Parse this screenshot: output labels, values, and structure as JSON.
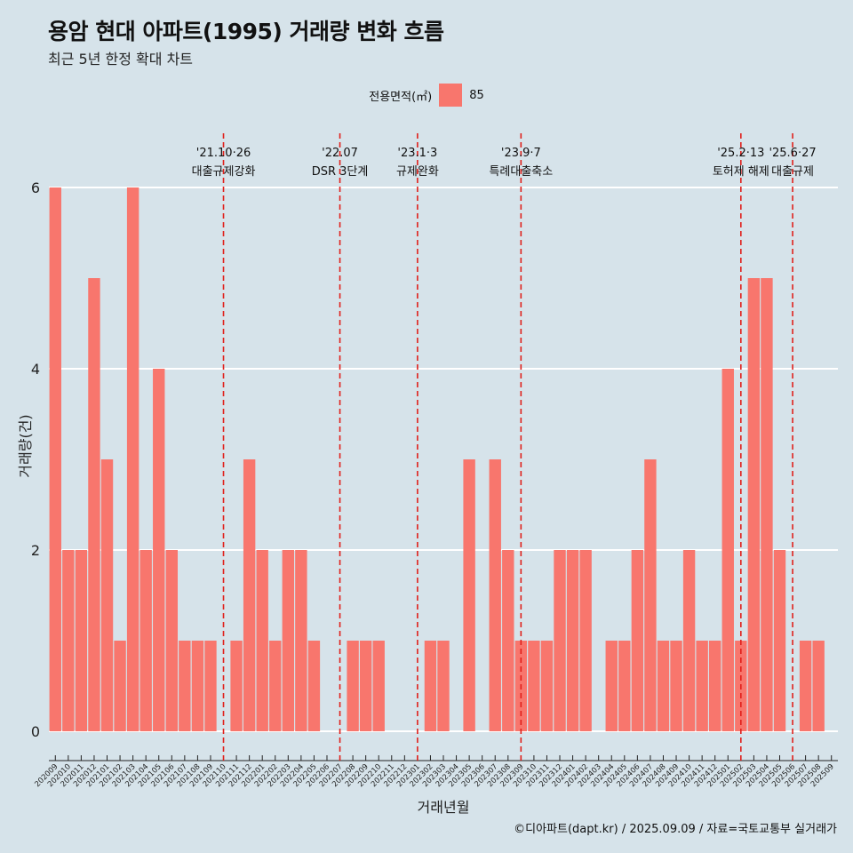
{
  "title": "용암 현대 아파트(1995) 거래량 변화 흐름",
  "subtitle": "최근 5년 한정 확대 차트",
  "caption": "©디아파트(dapt.kr) / 2025.09.09 / 자료=국토교통부 실거래가",
  "colors": {
    "bar": "#f8766d",
    "event_line": "#e0201b",
    "grid": "#ffffff",
    "background": "#d6e3ea"
  },
  "chart_data": {
    "type": "bar",
    "xlabel": "거래년월",
    "ylabel": "거래량(건)",
    "ylim": [
      0,
      6
    ],
    "yticks": [
      0,
      2,
      4,
      6
    ],
    "grid": true,
    "legend": {
      "title": "전용면적(㎡)",
      "placement": "top-center",
      "entries": [
        "85"
      ]
    },
    "categories": [
      "202009",
      "202010",
      "202011",
      "202012",
      "202101",
      "202102",
      "202103",
      "202104",
      "202105",
      "202106",
      "202107",
      "202108",
      "202109",
      "202110",
      "202111",
      "202112",
      "202201",
      "202202",
      "202203",
      "202204",
      "202205",
      "202206",
      "202207",
      "202208",
      "202209",
      "202210",
      "202211",
      "202212",
      "202301",
      "202302",
      "202303",
      "202304",
      "202305",
      "202306",
      "202307",
      "202308",
      "202309",
      "202310",
      "202311",
      "202312",
      "202401",
      "202402",
      "202403",
      "202404",
      "202405",
      "202406",
      "202407",
      "202408",
      "202409",
      "202410",
      "202411",
      "202412",
      "202501",
      "202502",
      "202503",
      "202504",
      "202505",
      "202506",
      "202507",
      "202508",
      "202509"
    ],
    "series": [
      {
        "name": "85",
        "values": [
          6,
          2,
          2,
          5,
          3,
          1,
          6,
          2,
          4,
          2,
          1,
          1,
          1,
          0,
          1,
          3,
          2,
          1,
          2,
          2,
          1,
          0,
          0,
          1,
          1,
          1,
          0,
          0,
          0,
          1,
          1,
          0,
          3,
          0,
          3,
          2,
          1,
          1,
          1,
          2,
          2,
          2,
          0,
          1,
          1,
          2,
          3,
          1,
          1,
          2,
          1,
          1,
          4,
          1,
          5,
          5,
          2,
          0,
          1,
          1,
          0
        ]
      }
    ],
    "annotations": [
      {
        "x": "202110",
        "date": "'21.10·26",
        "label": "대출규제강화"
      },
      {
        "x": "202207",
        "date": "'22.07",
        "label": "DSR 3단계"
      },
      {
        "x": "202301",
        "date": "'23.1·3",
        "label": "규제완화"
      },
      {
        "x": "202309",
        "date": "'23.9·7",
        "label": "특례대출축소"
      },
      {
        "x": "202502",
        "date": "'25.2·13",
        "label": "토허제 해제"
      },
      {
        "x": "202506",
        "date": "'25.6·27",
        "label": "대출규제"
      }
    ]
  }
}
